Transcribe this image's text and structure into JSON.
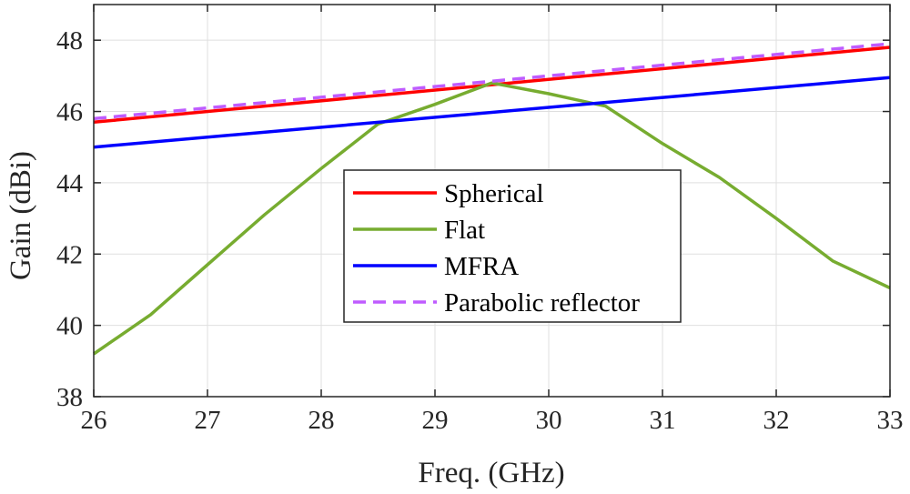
{
  "chart_data": {
    "type": "line",
    "title": "",
    "xlabel": "Freq. (GHz)",
    "ylabel": "Gain (dBi)",
    "xlim": [
      26,
      33
    ],
    "ylim": [
      38,
      49
    ],
    "xticks": [
      26,
      27,
      28,
      29,
      30,
      31,
      32,
      33
    ],
    "yticks": [
      38,
      40,
      42,
      44,
      46,
      48
    ],
    "grid": true,
    "legend_position": "center",
    "series": [
      {
        "name": "Spherical",
        "color": "#ff0000",
        "style": "solid",
        "x": [
          26,
          33
        ],
        "y": [
          45.7,
          47.8
        ]
      },
      {
        "name": "Flat",
        "color": "#77ac30",
        "style": "solid",
        "x": [
          26,
          26.5,
          27,
          27.5,
          28,
          28.5,
          29,
          29.5,
          30,
          30.5,
          31,
          31.5,
          32,
          32.5,
          33
        ],
        "y": [
          39.2,
          40.3,
          41.7,
          43.1,
          44.4,
          45.65,
          46.2,
          46.8,
          46.5,
          46.15,
          45.1,
          44.15,
          43.0,
          41.8,
          41.05
        ]
      },
      {
        "name": "MFRA",
        "color": "#0000ff",
        "style": "solid",
        "x": [
          26,
          33
        ],
        "y": [
          45.0,
          46.95
        ]
      },
      {
        "name": "Parabolic reflector",
        "color": "#bf5bff",
        "style": "dashed",
        "x": [
          26,
          33
        ],
        "y": [
          45.8,
          47.9
        ]
      }
    ]
  }
}
